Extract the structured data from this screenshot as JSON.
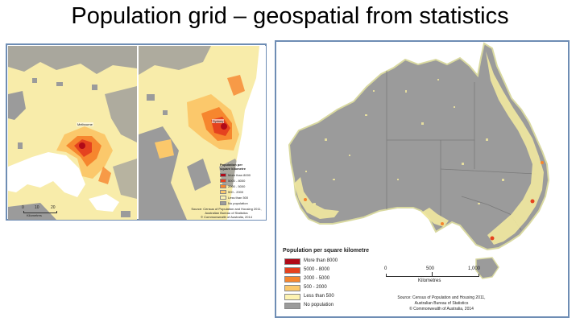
{
  "title": "Population grid – geospatial from statistics",
  "colors": {
    "more_than_8000": "#b00a18",
    "c5000_8000": "#e5421f",
    "c2000_5000": "#f6862e",
    "c500_2000": "#fbc86b",
    "less_than_500": "#fdf3b2",
    "no_population": "#9b9b9b",
    "water": "#ffffff",
    "frame": "#6e8db4"
  },
  "left_figure": {
    "melbourne_map": {
      "city_label": "Melbourne",
      "scale_numbers": [
        "0",
        "10",
        "20"
      ],
      "scale_unit": "Kilometres"
    },
    "sydney_map": {
      "city_label": "Sydney",
      "legend_title": "Population per square kilometre",
      "legend_items": [
        "More than 8000",
        "5000 - 8000",
        "2000 - 5000",
        "500 - 2000",
        "Less than 500",
        "No population"
      ],
      "source_lines": [
        "Source: Census of Population and Housing 2011,",
        "Australian Bureau of Statistics",
        "© Commonwealth of Australia, 2014"
      ]
    }
  },
  "right_figure": {
    "legend_title": "Population per square kilometre",
    "legend_items": [
      "More than 8000",
      "5000 - 8000",
      "2000 - 5000",
      "500 - 2000",
      "Less than 500",
      "No population"
    ],
    "scale_numbers": [
      "0",
      "500",
      "1,000"
    ],
    "scale_unit": "Kilometres",
    "source_lines": [
      "Source: Census of Population and Housing 2011,",
      "Australian Bureau of Statistics",
      "© Commonwealth of Australia, 2014"
    ]
  }
}
